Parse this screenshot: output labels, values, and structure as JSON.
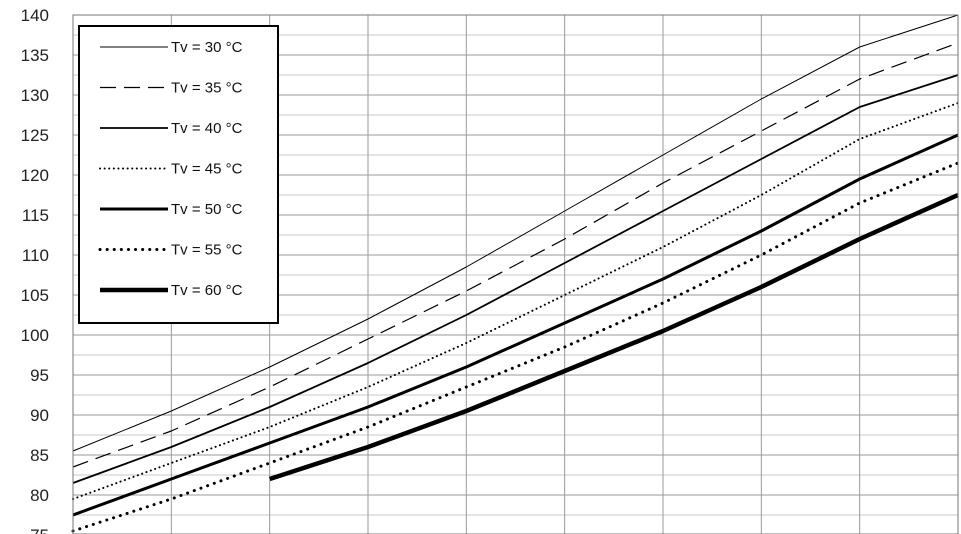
{
  "chart_data": {
    "type": "line",
    "title": "",
    "xlabel": "",
    "ylabel": "",
    "ylim": [
      75,
      140
    ],
    "y_ticks": [
      75,
      80,
      85,
      90,
      95,
      100,
      105,
      110,
      115,
      120,
      125,
      130,
      135,
      140
    ],
    "y_minor_step": 2.5,
    "x_gridlines": 9,
    "grid": true,
    "legend_position": "top-left",
    "series": [
      {
        "name": "Tv = 30 °C",
        "style": "thin-solid",
        "x": [
          0,
          1,
          2,
          3,
          4,
          5,
          6,
          7,
          8,
          9
        ],
        "y": [
          85.5,
          90.5,
          96,
          102,
          108.5,
          115.5,
          122.5,
          129.5,
          136,
          140
        ]
      },
      {
        "name": "Tv = 35 °C",
        "style": "dashed",
        "x": [
          0,
          1,
          2,
          3,
          4,
          5,
          6,
          7,
          8,
          9
        ],
        "y": [
          83.5,
          88,
          93.5,
          99.5,
          105.5,
          112,
          119,
          125.5,
          132,
          136.5
        ]
      },
      {
        "name": "Tv = 40 °C",
        "style": "medium-solid",
        "x": [
          0,
          1,
          2,
          3,
          4,
          5,
          6,
          7,
          8,
          9
        ],
        "y": [
          81.5,
          86,
          91,
          96.5,
          102.5,
          109,
          115.5,
          122,
          128.5,
          132.5
        ]
      },
      {
        "name": "Tv = 45 °C",
        "style": "dense-dotted",
        "x": [
          0,
          1,
          2,
          3,
          4,
          5,
          6,
          7,
          8,
          9
        ],
        "y": [
          79.5,
          84,
          88.5,
          93.5,
          99,
          105,
          111,
          117.5,
          124.5,
          129
        ]
      },
      {
        "name": "Tv = 50 °C",
        "style": "thick-solid",
        "x": [
          0,
          1,
          2,
          3,
          4,
          5,
          6,
          7,
          8,
          9
        ],
        "y": [
          77.5,
          82,
          86.5,
          91,
          96,
          101.5,
          107,
          113,
          119.5,
          125
        ]
      },
      {
        "name": "Tv = 55 °C",
        "style": "sparse-dotted",
        "x": [
          0,
          1,
          2,
          3,
          4,
          5,
          6,
          7,
          8,
          9
        ],
        "y": [
          75.5,
          79.5,
          84,
          88.5,
          93.5,
          98.5,
          104,
          110,
          116.5,
          121.5
        ]
      },
      {
        "name": "Tv = 60 °C",
        "style": "very-thick-solid",
        "x": [
          2,
          3,
          4,
          5,
          6,
          7,
          8,
          9
        ],
        "y": [
          82,
          86,
          90.5,
          95.5,
          100.5,
          106,
          112,
          117.5
        ]
      }
    ]
  }
}
